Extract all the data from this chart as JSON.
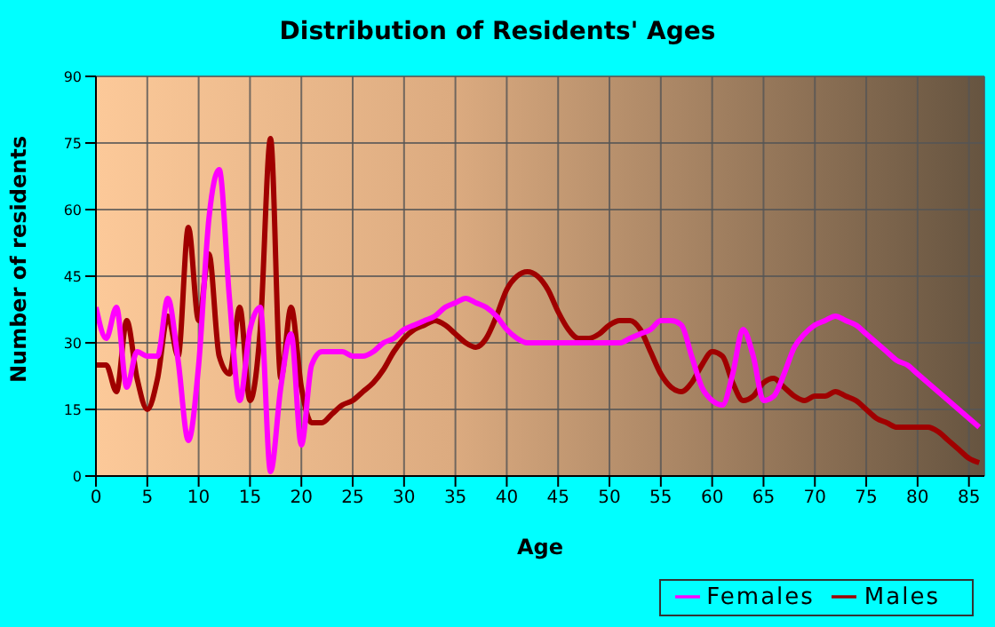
{
  "chart_data": {
    "type": "line",
    "title": "Distribution of Residents' Ages",
    "xlabel": "Age",
    "ylabel": "Number of residents",
    "x": [
      0,
      1,
      2,
      3,
      4,
      5,
      6,
      7,
      8,
      9,
      10,
      11,
      12,
      13,
      14,
      15,
      16,
      17,
      18,
      19,
      20,
      21,
      22,
      23,
      24,
      25,
      26,
      27,
      28,
      29,
      30,
      31,
      32,
      33,
      34,
      35,
      36,
      37,
      38,
      39,
      40,
      41,
      42,
      43,
      44,
      45,
      46,
      47,
      48,
      49,
      50,
      51,
      52,
      53,
      54,
      55,
      56,
      57,
      58,
      59,
      60,
      61,
      62,
      63,
      64,
      65,
      66,
      67,
      68,
      69,
      70,
      71,
      72,
      73,
      74,
      75,
      76,
      77,
      78,
      79,
      80,
      81,
      82,
      83,
      84,
      85,
      86
    ],
    "series": [
      {
        "name": "Males",
        "color": "#a00000",
        "values": [
          25,
          25,
          19,
          35,
          22,
          15,
          22,
          36,
          27,
          56,
          35,
          50,
          27,
          23,
          38,
          17,
          33,
          76,
          22,
          38,
          20,
          12,
          12,
          14,
          16,
          17,
          19,
          21,
          24,
          28,
          31,
          33,
          34,
          35,
          34,
          32,
          30,
          29,
          31,
          36,
          42,
          45,
          46,
          45,
          42,
          37,
          33,
          31,
          31,
          32,
          34,
          35,
          35,
          33,
          28,
          23,
          20,
          19,
          21,
          25,
          28,
          27,
          21,
          17,
          18,
          21,
          22,
          20,
          18,
          17,
          18,
          18,
          19,
          18,
          17,
          15,
          13,
          12,
          11,
          11,
          11,
          11,
          10,
          8,
          6,
          4,
          3
        ]
      },
      {
        "name": "Females",
        "color": "#ff00ff",
        "values": [
          38,
          31,
          38,
          20,
          28,
          27,
          27,
          40,
          26,
          8,
          25,
          58,
          69,
          40,
          17,
          33,
          38,
          1,
          20,
          32,
          7,
          25,
          28,
          28,
          28,
          27,
          27,
          28,
          30,
          31,
          33,
          34,
          35,
          36,
          38,
          39,
          40,
          39,
          38,
          36,
          33,
          31,
          30,
          30,
          30,
          30,
          30,
          30,
          30,
          30,
          30,
          30,
          31,
          32,
          33,
          35,
          35,
          34,
          27,
          20,
          17,
          16,
          23,
          33,
          27,
          17,
          18,
          23,
          29,
          32,
          34,
          35,
          36,
          35,
          34,
          32,
          30,
          28,
          26,
          25,
          23,
          21,
          19,
          17,
          15,
          13,
          11
        ]
      }
    ],
    "xlim": [
      0,
      86.5
    ],
    "xticks": [
      0,
      5,
      10,
      15,
      20,
      25,
      30,
      35,
      40,
      45,
      50,
      55,
      60,
      65,
      70,
      75,
      80,
      85
    ],
    "ylim": [
      0,
      90
    ],
    "yticks": [
      0,
      15,
      30,
      45,
      60,
      75,
      90
    ],
    "grid": true,
    "legend": "bottom right",
    "marker": "none",
    "line_style": "solid"
  }
}
